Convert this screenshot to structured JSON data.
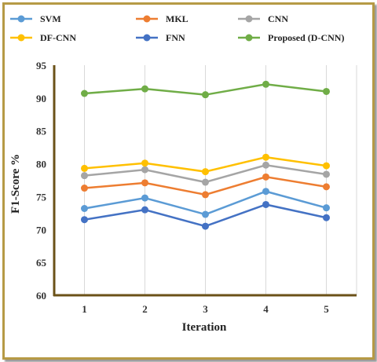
{
  "chart_data": {
    "type": "line",
    "x": [
      1,
      2,
      3,
      4,
      5
    ],
    "xlabel": "Iteration",
    "ylabel": "F1-Score %",
    "ylim": [
      60,
      95
    ],
    "yticks": [
      60,
      65,
      70,
      75,
      80,
      85,
      90,
      95
    ],
    "grid": "vertical",
    "legend_position": "top",
    "series": [
      {
        "name": "SVM",
        "color": "#5b9bd5",
        "values": [
          73.2,
          74.8,
          72.3,
          75.8,
          73.3
        ]
      },
      {
        "name": "MKL",
        "color": "#ed7d31",
        "values": [
          76.3,
          77.1,
          75.3,
          78.0,
          76.5
        ]
      },
      {
        "name": "CNN",
        "color": "#a5a5a5",
        "values": [
          78.2,
          79.1,
          77.2,
          79.8,
          78.4
        ]
      },
      {
        "name": "DF-CNN",
        "color": "#ffc000",
        "values": [
          79.3,
          80.1,
          78.8,
          81.0,
          79.7
        ]
      },
      {
        "name": "FNN",
        "color": "#4472c4",
        "values": [
          71.5,
          73.0,
          70.5,
          73.8,
          71.8
        ]
      },
      {
        "name": "Proposed (D-CNN)",
        "color": "#70ad47",
        "values": [
          90.7,
          91.4,
          90.5,
          92.1,
          91.0
        ]
      }
    ]
  }
}
